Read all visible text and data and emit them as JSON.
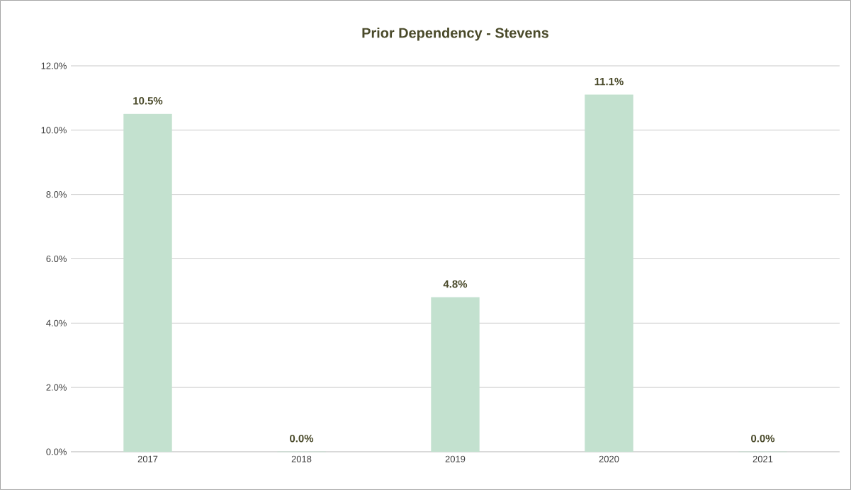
{
  "chart_data": {
    "type": "bar",
    "title": "Prior Dependency -  Stevens",
    "categories": [
      "2017",
      "2018",
      "2019",
      "2020",
      "2021"
    ],
    "values": [
      10.5,
      0.0,
      4.8,
      11.1,
      0.0
    ],
    "value_labels": [
      "10.5%",
      "0.0%",
      "4.8%",
      "11.1%",
      "0.0%"
    ],
    "color": "#c3e1cf",
    "ylim": [
      0,
      12
    ],
    "yticks": [
      {
        "value": 0,
        "label": "0.0%"
      },
      {
        "value": 2,
        "label": "2.0%"
      },
      {
        "value": 4,
        "label": "4.0%"
      },
      {
        "value": 6,
        "label": "6.0%"
      },
      {
        "value": 8,
        "label": "8.0%"
      },
      {
        "value": 10,
        "label": "10.0%"
      },
      {
        "value": 12,
        "label": "12.0%"
      }
    ],
    "grid": "y"
  }
}
